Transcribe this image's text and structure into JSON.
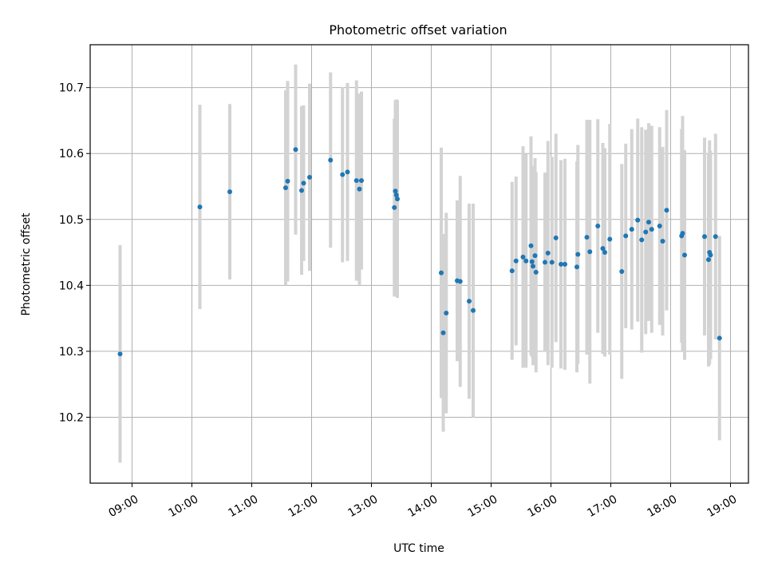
{
  "chart_data": {
    "type": "scatter",
    "title": "Photometric offset variation",
    "xlabel": "UTC time",
    "ylabel": "Photometric offset",
    "xlim": [
      "08:18",
      "19:18"
    ],
    "ylim": [
      10.1,
      10.765
    ],
    "grid": true,
    "x_ticks": [
      "09:00",
      "10:00",
      "11:00",
      "12:00",
      "13:00",
      "14:00",
      "15:00",
      "16:00",
      "17:00",
      "18:00",
      "19:00"
    ],
    "y_ticks": [
      "10.2",
      "10.3",
      "10.4",
      "10.5",
      "10.6",
      "10.7"
    ],
    "colors": {
      "point": "#1f77b4",
      "error_bar": "#d3d3d3"
    },
    "series": [
      {
        "x": [
          "08:48",
          "10:08",
          "10:38",
          "11:34",
          "11:36",
          "11:44",
          "11:50",
          "11:52",
          "11:58",
          "12:19",
          "12:31",
          "12:36",
          "12:45",
          "12:48",
          "12:50",
          "13:23",
          "13:24",
          "13:25",
          "13:26",
          "14:10",
          "14:12",
          "14:15",
          "14:26",
          "14:29",
          "14:38",
          "14:42",
          "15:21",
          "15:25",
          "15:32",
          "15:35",
          "15:40",
          "15:41",
          "15:42",
          "15:44",
          "15:45",
          "15:54",
          "15:57",
          "16:01",
          "16:05",
          "16:10",
          "16:14",
          "16:26",
          "16:27",
          "16:36",
          "16:39",
          "16:47",
          "16:52",
          "16:54",
          "16:59",
          "17:11",
          "17:15",
          "17:21",
          "17:27",
          "17:31",
          "17:35",
          "17:38",
          "17:41",
          "17:49",
          "17:52",
          "17:56",
          "18:11",
          "18:12",
          "18:14",
          "18:34",
          "18:38",
          "18:39",
          "18:40",
          "18:45",
          "18:49"
        ],
        "y": [
          10.296,
          10.519,
          10.542,
          10.548,
          10.558,
          10.606,
          10.544,
          10.555,
          10.564,
          10.59,
          10.568,
          10.572,
          10.559,
          10.546,
          10.559,
          10.518,
          10.543,
          10.537,
          10.531,
          10.419,
          10.328,
          10.358,
          10.407,
          10.406,
          10.376,
          10.362,
          10.422,
          10.437,
          10.443,
          10.437,
          10.46,
          10.436,
          10.429,
          10.445,
          10.42,
          10.435,
          10.449,
          10.435,
          10.472,
          10.432,
          10.432,
          10.428,
          10.447,
          10.473,
          10.451,
          10.49,
          10.456,
          10.45,
          10.47,
          10.421,
          10.475,
          10.485,
          10.499,
          10.469,
          10.481,
          10.496,
          10.485,
          10.49,
          10.467,
          10.514,
          10.475,
          10.479,
          10.446,
          10.474,
          10.439,
          10.45,
          10.446,
          10.474,
          10.32
        ],
        "err": [
          0.165,
          0.155,
          0.133,
          0.148,
          0.152,
          0.129,
          0.128,
          0.118,
          0.142,
          0.133,
          0.133,
          0.135,
          0.152,
          0.145,
          0.135,
          0.135,
          0.138,
          0.145,
          0.15,
          0.19,
          0.15,
          0.152,
          0.122,
          0.16,
          0.148,
          0.162,
          0.135,
          0.128,
          0.168,
          0.162,
          0.166,
          0.145,
          0.15,
          0.148,
          0.152,
          0.136,
          0.17,
          0.16,
          0.158,
          0.158,
          0.16,
          0.16,
          0.166,
          0.178,
          0.2,
          0.162,
          0.16,
          0.158,
          0.175,
          0.163,
          0.14,
          0.152,
          0.154,
          0.171,
          0.155,
          0.15,
          0.157,
          0.15,
          0.143,
          0.152,
          0.162,
          0.178,
          0.159,
          0.15,
          0.162,
          0.17,
          0.158,
          0.156,
          0.155
        ]
      }
    ]
  }
}
